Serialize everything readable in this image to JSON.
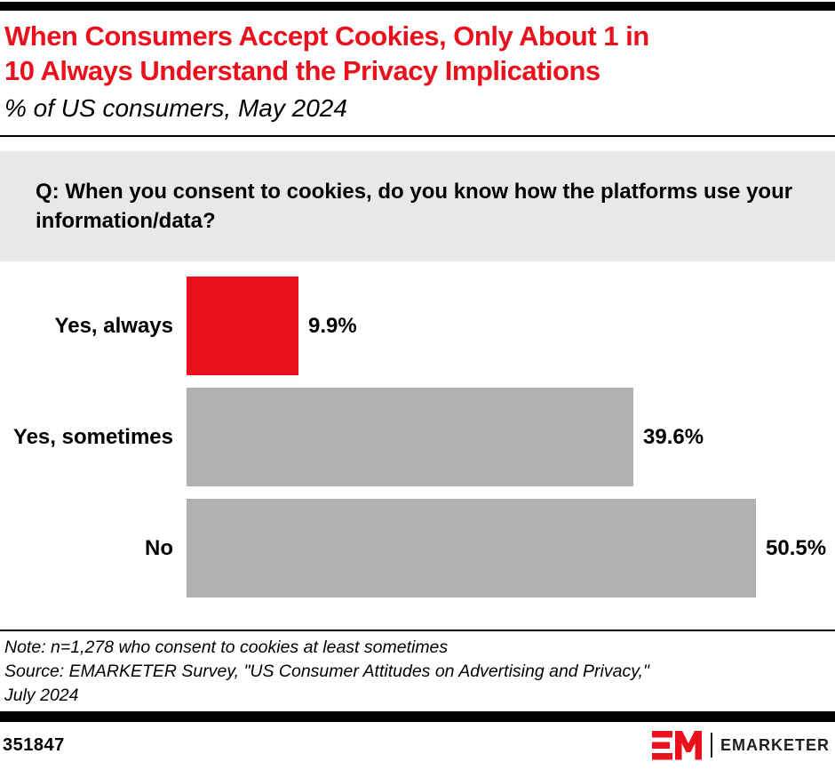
{
  "header": {
    "title_lines": [
      "When Consumers Accept Cookies, Only About 1 in",
      "10 Always Understand the Privacy Implications"
    ],
    "subtitle": "% of US consumers, May 2024"
  },
  "question": {
    "text": "Q: When you consent to cookies, do you know how the platforms use your information/data?"
  },
  "chart_data": {
    "type": "bar",
    "orientation": "horizontal",
    "title": "When Consumers Accept Cookies, Only About 1 in 10 Always Understand the Privacy Implications",
    "subtitle": "% of US consumers, May 2024",
    "question": "Q: When you consent to cookies, do you know how the platforms use your information/data?",
    "categories": [
      "Yes, always",
      "Yes, sometimes",
      "No"
    ],
    "values": [
      9.9,
      39.6,
      50.5
    ],
    "value_labels": [
      "9.9%",
      "39.6%",
      "50.5%"
    ],
    "unit": "%",
    "xlim": [
      0,
      50.5
    ],
    "bar_colors": [
      "#EA111D",
      "#B1B1B1",
      "#B1B1B1"
    ],
    "grid": false,
    "legend": false
  },
  "footnotes": {
    "lines": [
      "Note: n=1,278 who consent to cookies at least sometimes",
      "Source: EMARKETER Survey, \"US Consumer Attitudes on Advertising and Privacy,\"",
      "July 2024"
    ]
  },
  "footer": {
    "chart_id": "351847",
    "brand": "EMARKETER"
  },
  "colors": {
    "accent_red": "#EA111D",
    "bar_gray": "#B1B1B1",
    "question_bg": "#E8E8E8",
    "text_black": "#000000"
  }
}
